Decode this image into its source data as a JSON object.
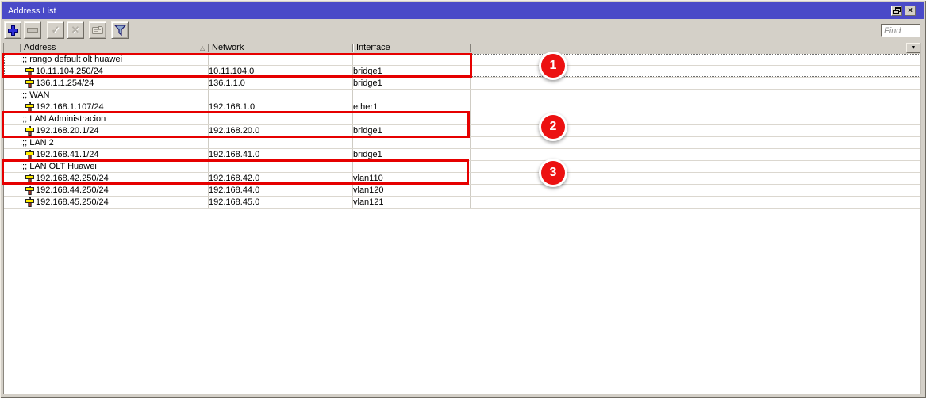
{
  "window": {
    "title": "Address List"
  },
  "toolbar": {
    "find_placeholder": "Find",
    "buttons": [
      {
        "name": "add",
        "icon": "plus-icon"
      },
      {
        "name": "remove",
        "icon": "minus-icon"
      },
      {
        "name": "enable",
        "icon": "check-icon"
      },
      {
        "name": "disable",
        "icon": "cross-icon"
      },
      {
        "name": "comment",
        "icon": "comment-icon"
      },
      {
        "name": "filter",
        "icon": "funnel-icon"
      }
    ]
  },
  "table": {
    "columns": [
      "Address",
      "Network",
      "Interface"
    ],
    "rows": [
      {
        "type": "comment",
        "text": ";;; rango default olt huawei"
      },
      {
        "type": "address",
        "address": "10.11.104.250/24",
        "network": "10.11.104.0",
        "interface": "bridge1"
      },
      {
        "type": "address",
        "address": "136.1.1.254/24",
        "network": "136.1.1.0",
        "interface": "bridge1"
      },
      {
        "type": "comment",
        "text": ";;; WAN"
      },
      {
        "type": "address",
        "address": "192.168.1.107/24",
        "network": "192.168.1.0",
        "interface": "ether1"
      },
      {
        "type": "comment",
        "text": ";;; LAN Administracion"
      },
      {
        "type": "address",
        "address": "192.168.20.1/24",
        "network": "192.168.20.0",
        "interface": "bridge1"
      },
      {
        "type": "comment",
        "text": ";;; LAN 2"
      },
      {
        "type": "address",
        "address": "192.168.41.1/24",
        "network": "192.168.41.0",
        "interface": "bridge1"
      },
      {
        "type": "comment",
        "text": ";;; LAN OLT Huawei"
      },
      {
        "type": "address",
        "address": "192.168.42.250/24",
        "network": "192.168.42.0",
        "interface": "vlan110"
      },
      {
        "type": "address",
        "address": "192.168.44.250/24",
        "network": "192.168.44.0",
        "interface": "vlan120"
      },
      {
        "type": "address",
        "address": "192.168.45.250/24",
        "network": "192.168.45.0",
        "interface": "vlan121"
      }
    ]
  },
  "annotations": {
    "badges": [
      "1",
      "2",
      "3"
    ]
  },
  "glyphs": {
    "check": "✓",
    "cross": "✕",
    "chooser": "▼",
    "close": "×",
    "sort": "△"
  },
  "colors": {
    "titlebar_blue": "#4a4ac8",
    "window_gray": "#d4d0c8",
    "accent_blue": "#2d2dd6",
    "annotation_red": "#e60000"
  }
}
